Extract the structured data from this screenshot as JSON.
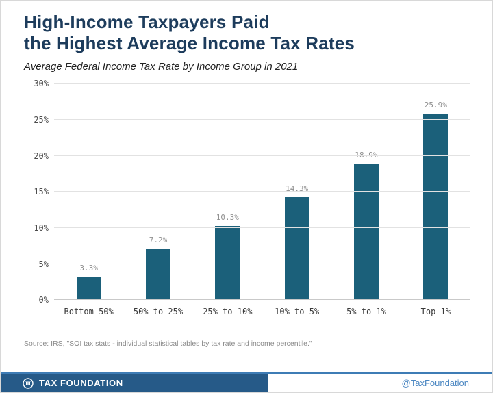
{
  "header": {
    "title_line1": "High-Income Taxpayers Paid",
    "title_line2": "the Highest Average Income Tax Rates",
    "subtitle": "Average Federal Income Tax Rate by Income Group in 2021"
  },
  "chart_data": {
    "type": "bar",
    "title": "Average Federal Income Tax Rate by Income Group in 2021",
    "categories": [
      "Bottom 50%",
      "50% to 25%",
      "25% to 10%",
      "10% to 5%",
      "5% to 1%",
      "Top 1%"
    ],
    "values": [
      3.3,
      7.2,
      10.3,
      14.3,
      18.9,
      25.9
    ],
    "value_labels": [
      "3.3%",
      "7.2%",
      "10.3%",
      "14.3%",
      "18.9%",
      "25.9%"
    ],
    "xlabel": "",
    "ylabel": "",
    "ylim": [
      0,
      30
    ],
    "yticks": [
      0,
      5,
      10,
      15,
      20,
      25,
      30
    ],
    "ytick_labels": [
      "0%",
      "5%",
      "10%",
      "15%",
      "20%",
      "25%",
      "30%"
    ],
    "grid": true,
    "legend": "none",
    "bar_color": "#1b607a"
  },
  "source": "Source: IRS, \"SOI tax stats - individual statistical tables by tax rate and income percentile.\"",
  "footer": {
    "brand": "TAX FOUNDATION",
    "handle": "@TaxFoundation"
  },
  "colors": {
    "title": "#1d3c5c",
    "bar": "#1b607a",
    "divider": "#3e7cb5",
    "brand_band": "#265a88",
    "handle": "#4b87c2"
  }
}
